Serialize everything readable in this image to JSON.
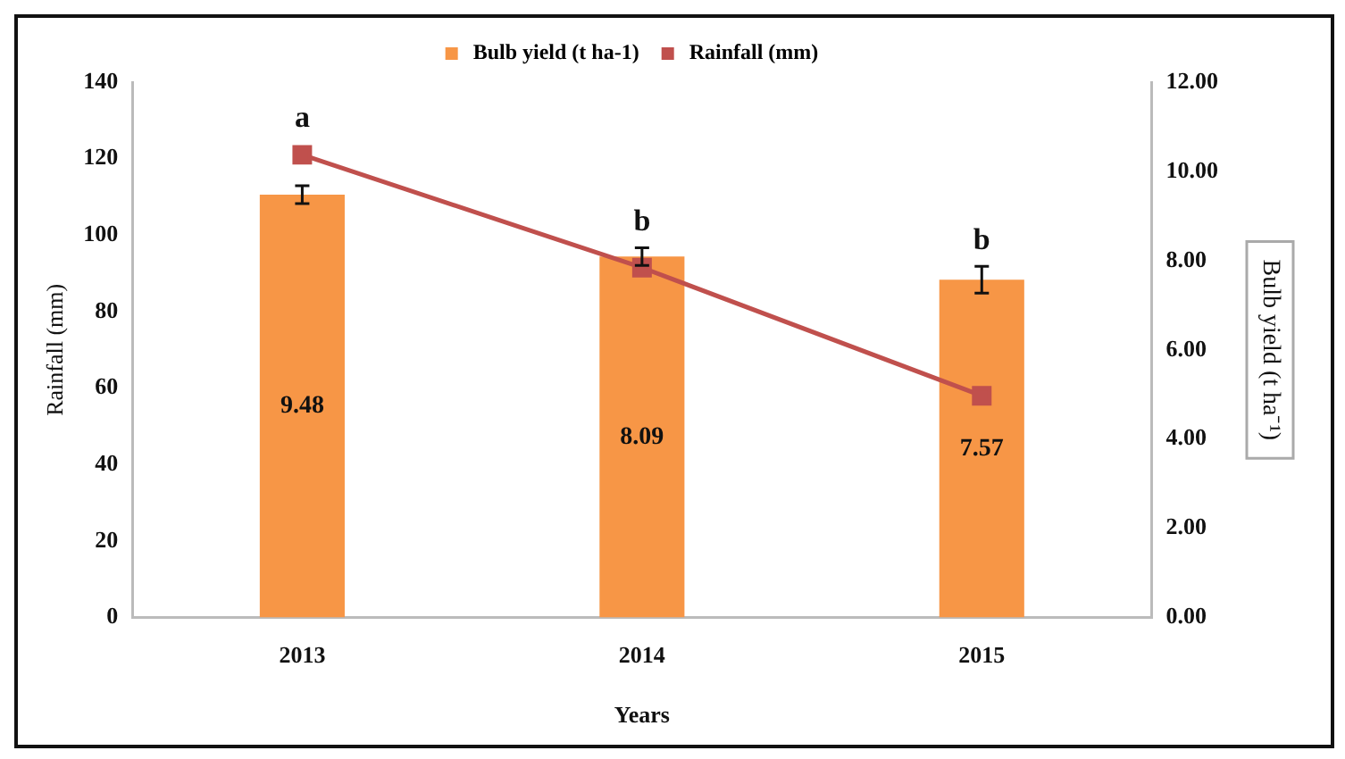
{
  "chart_data": {
    "type": "bar",
    "categories": [
      "2013",
      "2014",
      "2015"
    ],
    "series": [
      {
        "name": "Bulb yield (t ha-1)",
        "axis": "y2",
        "color": "#f79646",
        "values": [
          9.48,
          8.09,
          7.57
        ],
        "errors": [
          0.2,
          0.2,
          0.3
        ],
        "value_labels": [
          "9.48",
          "8.09",
          "7.57"
        ]
      },
      {
        "name": "Rainfall (mm)",
        "type": "line",
        "color": "#c0504d",
        "values": [
          121,
          91.5,
          58
        ],
        "marker": "square"
      }
    ],
    "xlabel": "Years",
    "ylabel": "Rainfall (mm)",
    "y2label": "Bulb yield (t ha⁻¹)",
    "ylim": [
      0,
      140
    ],
    "yticks": [
      0,
      20,
      40,
      60,
      80,
      100,
      120,
      140
    ],
    "y2lim": [
      0,
      12
    ],
    "y2ticks": [
      {
        "value": 0,
        "label": "0.00"
      },
      {
        "value": 2,
        "label": "2.00"
      },
      {
        "value": 4,
        "label": "4.00"
      },
      {
        "value": 6,
        "label": "6.00"
      },
      {
        "value": 8,
        "label": "8.00"
      },
      {
        "value": 10,
        "label": "10.00"
      },
      {
        "value": 12,
        "label": "12.00"
      }
    ],
    "annotations": [
      "a",
      "b",
      "b"
    ],
    "legend": "top",
    "grid": false
  }
}
